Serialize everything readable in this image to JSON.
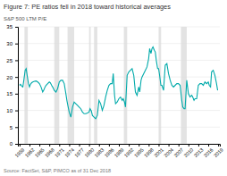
{
  "chart_data": {
    "type": "line",
    "title": "Figure 7: PE ratios fell in 2018 toward historical averages",
    "ylabel": "S&P 500 LTM P/E",
    "source": "Source: FactSet, S&P, PIMCO as of 31 Dec 2018",
    "color": "#00AAAA",
    "grid": true,
    "xlim": [
      1958.5,
      2019.5
    ],
    "ylim": [
      0,
      35
    ],
    "yticks": [
      0,
      5,
      10,
      15,
      20,
      25,
      30,
      35
    ],
    "xticks": [
      1959,
      1962,
      1965,
      1968,
      1971,
      1974,
      1977,
      1980,
      1983,
      1986,
      1989,
      1992,
      1995,
      1998,
      2001,
      2004,
      2007,
      2010,
      2013,
      2016,
      2019
    ],
    "recession_bands": [
      [
        1960.5,
        1961.5
      ],
      [
        1969.5,
        1971.0
      ],
      [
        1973.5,
        1975.5
      ],
      [
        1980.0,
        1980.5
      ],
      [
        1981.5,
        1982.5
      ],
      [
        1990.5,
        1991.5
      ],
      [
        2001.0,
        2001.75
      ],
      [
        2007.75,
        2009.5
      ]
    ],
    "x": [
      1959.0,
      1959.3,
      1959.7,
      1960.0,
      1960.3,
      1960.7,
      1961.0,
      1961.3,
      1961.7,
      1962.0,
      1962.3,
      1962.7,
      1963.0,
      1963.5,
      1964.0,
      1964.5,
      1965.0,
      1965.5,
      1966.0,
      1966.3,
      1966.7,
      1967.0,
      1967.5,
      1968.0,
      1968.3,
      1968.7,
      1969.0,
      1969.5,
      1970.0,
      1970.5,
      1971.0,
      1971.5,
      1972.0,
      1972.5,
      1973.0,
      1973.3,
      1973.7,
      1974.0,
      1974.5,
      1975.0,
      1975.5,
      1976.0,
      1976.5,
      1977.0,
      1977.5,
      1978.0,
      1978.5,
      1979.0,
      1979.5,
      1980.0,
      1980.3,
      1980.7,
      1981.0,
      1981.5,
      1982.0,
      1982.5,
      1983.0,
      1983.5,
      1984.0,
      1984.5,
      1985.0,
      1985.5,
      1986.0,
      1986.5,
      1987.0,
      1987.3,
      1987.7,
      1988.0,
      1988.5,
      1989.0,
      1989.5,
      1990.0,
      1990.3,
      1990.7,
      1991.0,
      1991.5,
      1992.0,
      1992.5,
      1993.0,
      1993.5,
      1994.0,
      1994.5,
      1995.0,
      1995.3,
      1995.7,
      1996.0,
      1996.5,
      1997.0,
      1997.5,
      1998.0,
      1998.3,
      1998.7,
      1999.0,
      1999.3,
      1999.7,
      2000.0,
      2000.3,
      2000.7,
      2001.0,
      2001.3,
      2001.7,
      2002.0,
      2002.5,
      2003.0,
      2003.5,
      2004.0,
      2004.5,
      2005.0,
      2005.5,
      2006.0,
      2006.5,
      2007.0,
      2007.5,
      2008.0,
      2008.3,
      2008.7,
      2009.0,
      2009.5,
      2010.0,
      2010.5,
      2011.0,
      2011.3,
      2011.7,
      2012.0,
      2012.5,
      2013.0,
      2013.5,
      2014.0,
      2014.5,
      2015.0,
      2015.5,
      2016.0,
      2016.3,
      2016.7,
      2017.0,
      2017.5,
      2018.0,
      2018.5,
      2018.83
    ],
    "values": [
      17.5,
      17.8,
      17.2,
      17.0,
      19.0,
      22.0,
      22.5,
      20.5,
      18.0,
      17.0,
      17.8,
      18.3,
      18.5,
      18.7,
      18.8,
      18.5,
      18.0,
      17.0,
      15.5,
      16.0,
      17.0,
      17.5,
      18.0,
      18.5,
      18.3,
      17.5,
      17.0,
      16.0,
      15.5,
      16.5,
      18.5,
      19.0,
      19.0,
      18.0,
      15.0,
      13.0,
      11.0,
      9.5,
      8.0,
      11.0,
      12.5,
      12.0,
      11.5,
      11.0,
      10.5,
      9.5,
      9.0,
      9.0,
      9.2,
      9.5,
      10.5,
      9.8,
      8.5,
      8.0,
      7.5,
      8.5,
      13.0,
      12.0,
      10.0,
      11.5,
      14.0,
      16.0,
      17.5,
      18.0,
      18.0,
      21.0,
      14.5,
      12.0,
      12.5,
      13.5,
      14.0,
      13.0,
      13.5,
      12.5,
      11.0,
      20.5,
      21.5,
      22.0,
      22.5,
      20.5,
      15.5,
      14.5,
      17.0,
      15.5,
      19.0,
      20.0,
      21.0,
      22.0,
      23.0,
      25.5,
      28.5,
      27.0,
      28.5,
      29.0,
      28.0,
      27.5,
      25.0,
      22.5,
      22.5,
      20.5,
      17.5,
      17.5,
      16.0,
      23.5,
      24.0,
      21.0,
      19.0,
      17.5,
      17.0,
      17.5,
      18.0,
      18.0,
      17.5,
      13.0,
      11.0,
      10.5,
      10.5,
      19.0,
      15.0,
      14.0,
      14.5,
      14.0,
      13.0,
      13.5,
      13.5,
      17.5,
      18.0,
      18.0,
      17.5,
      18.5,
      18.0,
      18.5,
      17.5,
      17.0,
      21.5,
      22.0,
      20.5,
      18.0,
      16.0
    ]
  }
}
